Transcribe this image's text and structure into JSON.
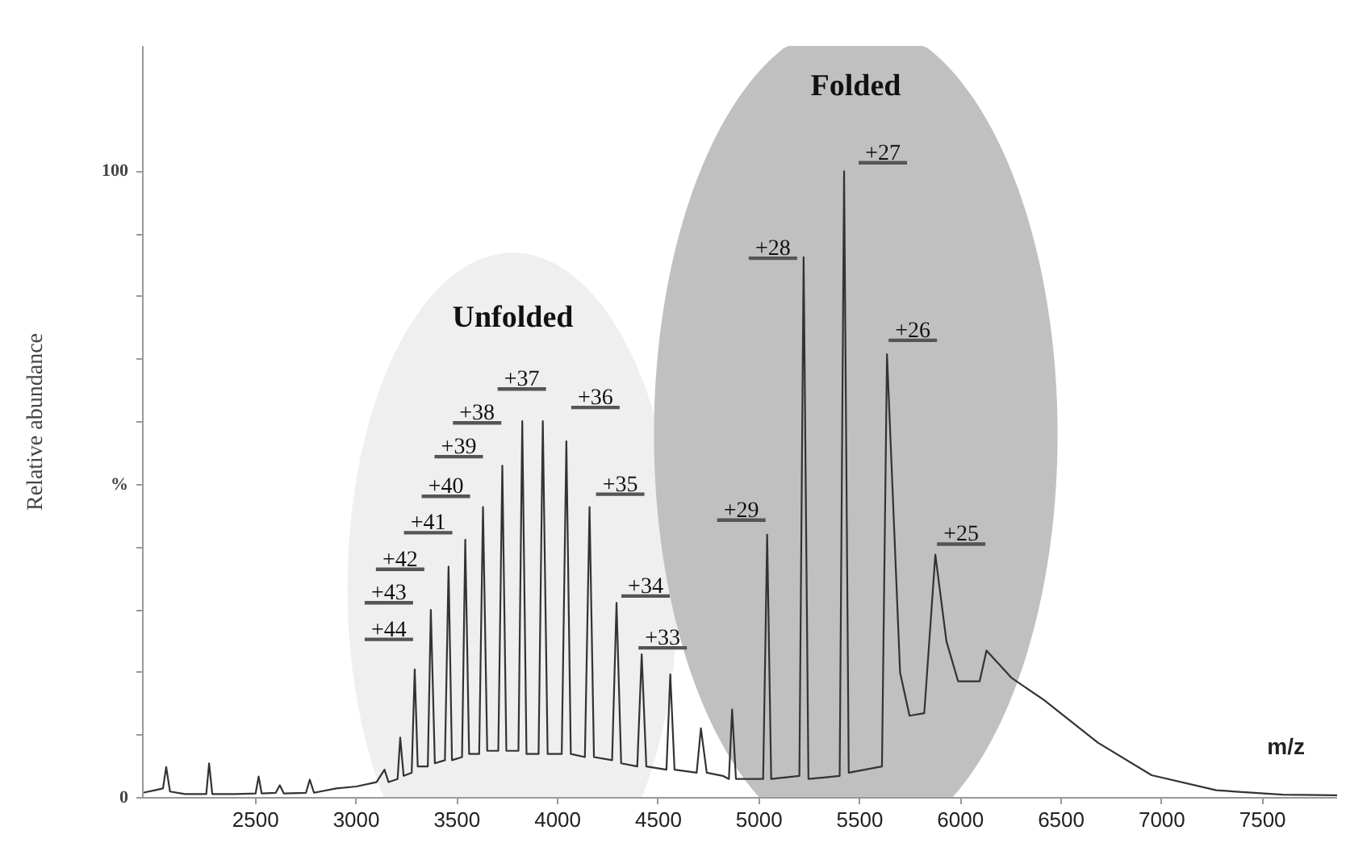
{
  "chart_data": {
    "type": "line",
    "xlabel": "m/z",
    "ylabel": "Relative abundance",
    "xlim": [
      1940,
      7870
    ],
    "ylim": [
      0,
      120
    ],
    "xticks": [
      2500,
      3000,
      3500,
      4000,
      4500,
      5000,
      5500,
      6000,
      6500,
      7000,
      7500
    ],
    "yticks": [
      0,
      {
        "value": 10,
        "label": null
      },
      {
        "value": 20,
        "label": null
      },
      {
        "value": 30,
        "label": null
      },
      {
        "value": 40,
        "label": null
      },
      {
        "value": 50,
        "label": "%"
      },
      {
        "value": 60,
        "label": null
      },
      {
        "value": 70,
        "label": null
      },
      {
        "value": 80,
        "label": null
      },
      {
        "value": 90,
        "label": null
      },
      100
    ],
    "x": [
      1940,
      2000,
      2040,
      2056,
      2075,
      2150,
      2255,
      2269,
      2285,
      2400,
      2500,
      2515,
      2530,
      2600,
      2620,
      2640,
      2750,
      2769,
      2790,
      2900,
      3000,
      3100,
      3140,
      3160,
      3205,
      3218,
      3235,
      3275,
      3290,
      3305,
      3355,
      3370,
      3390,
      3440,
      3458,
      3475,
      3525,
      3541,
      3560,
      3610,
      3629,
      3650,
      3705,
      3725,
      3745,
      3805,
      3824,
      3845,
      3905,
      3926,
      3950,
      4020,
      4043,
      4065,
      4135,
      4158,
      4180,
      4270,
      4292,
      4315,
      4395,
      4417,
      4440,
      4540,
      4559,
      4580,
      4690,
      4711,
      4740,
      4820,
      4850,
      4866,
      4885,
      5020,
      5040,
      5060,
      5200,
      5221,
      5245,
      5400,
      5422,
      5445,
      5610,
      5635,
      5700,
      5747,
      5820,
      5875,
      5930,
      5988,
      6095,
      6129,
      6255,
      6415,
      6682,
      6949,
      7270,
      7600,
      7870
    ],
    "values": [
      0.8,
      1.2,
      1.5,
      4.9,
      1,
      0.6,
      0.6,
      5.5,
      0.6,
      0.6,
      0.7,
      3.4,
      0.7,
      0.8,
      2,
      0.7,
      0.8,
      2.9,
      0.8,
      1.5,
      1.8,
      2.5,
      4.5,
      2.5,
      3,
      9.6,
      3.5,
      4,
      20.5,
      5,
      5,
      30,
      5.5,
      6,
      36.9,
      6,
      6.5,
      41.2,
      7,
      7,
      46.4,
      7.5,
      7.5,
      53,
      7.5,
      7.5,
      60.1,
      7,
      7,
      60.1,
      7,
      7,
      56.9,
      7,
      6.5,
      46.4,
      6.5,
      6,
      31.1,
      5.5,
      5,
      22.9,
      5,
      4.5,
      19.7,
      4.5,
      4,
      11.1,
      4,
      3.5,
      3,
      14.1,
      3,
      3,
      42,
      3,
      3.5,
      86.3,
      3,
      3.5,
      100,
      4,
      5,
      70.8,
      20,
      13.1,
      13.5,
      38.8,
      25,
      18.6,
      18.6,
      23.5,
      19.1,
      15.6,
      8.8,
      3.6,
      1.2,
      0.5,
      0.4
    ],
    "color": "#333333",
    "bands": [
      {
        "axis": "x",
        "from": 2956,
        "to": 4598,
        "label": "Unfolded",
        "color": "#efefef"
      },
      {
        "axis": "x",
        "from": 4478,
        "to": 6482,
        "label": "Folded",
        "color": "#c0c0c0"
      }
    ],
    "annotations": [
      {
        "text": "+44",
        "x": 3290,
        "y": 20.5
      },
      {
        "text": "+43",
        "x": 3370,
        "y": 30
      },
      {
        "text": "+42",
        "x": 3458,
        "y": 36.9
      },
      {
        "text": "+41",
        "x": 3541,
        "y": 41.2
      },
      {
        "text": "+40",
        "x": 3629,
        "y": 46.4
      },
      {
        "text": "+39",
        "x": 3725,
        "y": 53
      },
      {
        "text": "+38",
        "x": 3824,
        "y": 60.1
      },
      {
        "text": "+37",
        "x": 3926,
        "y": 60.1
      },
      {
        "text": "+36",
        "x": 4043,
        "y": 56.9
      },
      {
        "text": "+35",
        "x": 4158,
        "y": 46.4
      },
      {
        "text": "+34",
        "x": 4292,
        "y": 31.1
      },
      {
        "text": "+33",
        "x": 4417,
        "y": 22.9
      },
      {
        "text": "+29",
        "x": 5040,
        "y": 42
      },
      {
        "text": "+28",
        "x": 5221,
        "y": 86.3
      },
      {
        "text": "+27",
        "x": 5422,
        "y": 100
      },
      {
        "text": "+26",
        "x": 5635,
        "y": 70.8
      },
      {
        "text": "+25",
        "x": 5875,
        "y": 38.8
      }
    ]
  }
}
